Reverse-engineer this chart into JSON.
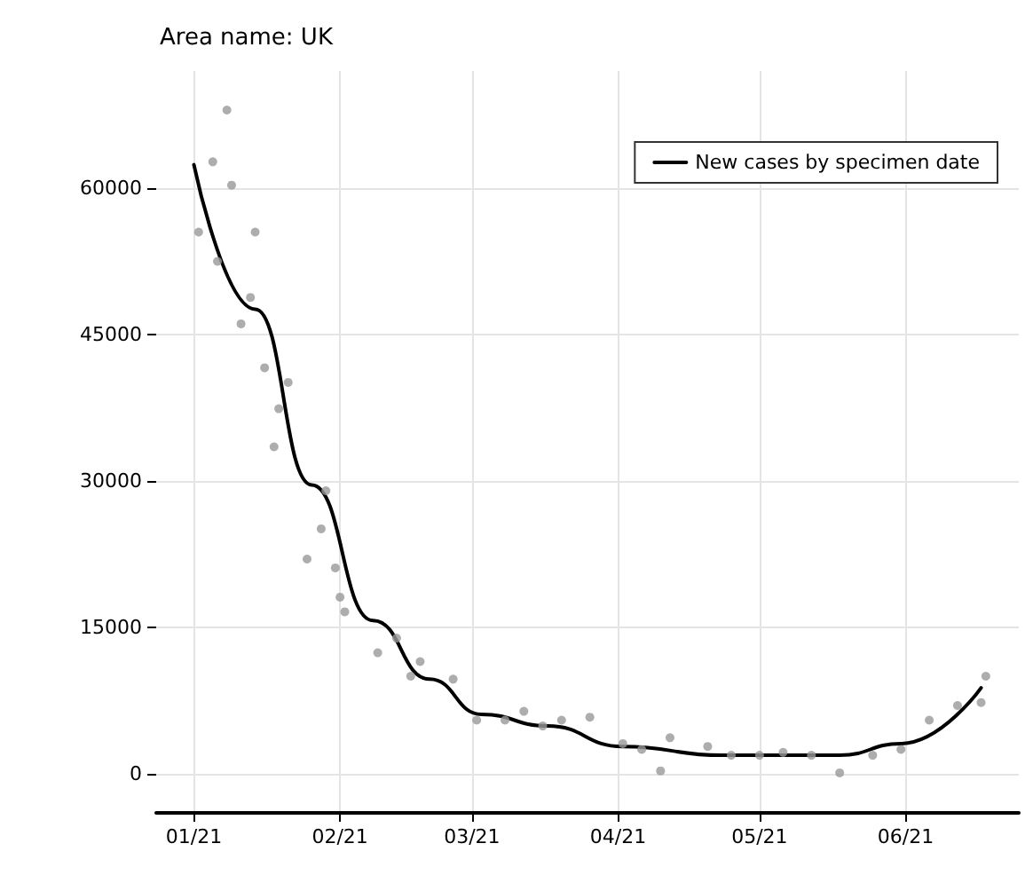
{
  "chart_data": {
    "type": "scatter",
    "title": "Area name: UK",
    "xlim": [
      "2020-12-24",
      "2021-06-25"
    ],
    "xticks": [
      {
        "value": "2021-01-01",
        "label": "01/21"
      },
      {
        "value": "2021-02-01",
        "label": "02/21"
      },
      {
        "value": "2021-03-01",
        "label": "03/21"
      },
      {
        "value": "2021-04-01",
        "label": "04/21"
      },
      {
        "value": "2021-05-01",
        "label": "05/21"
      },
      {
        "value": "2021-06-01",
        "label": "06/21"
      }
    ],
    "ylim": [
      -4000,
      72000
    ],
    "yticks": [
      0,
      15000,
      30000,
      45000,
      60000
    ],
    "grid": true,
    "legend": "top right",
    "series": [
      {
        "marker": "circle",
        "color": "#999999",
        "x": [
          "2021-01-02",
          "2021-01-05",
          "2021-01-06",
          "2021-01-08",
          "2021-01-09",
          "2021-01-11",
          "2021-01-13",
          "2021-01-14",
          "2021-01-16",
          "2021-01-18",
          "2021-01-19",
          "2021-01-21",
          "2021-01-25",
          "2021-01-28",
          "2021-01-29",
          "2021-01-31",
          "2021-02-01",
          "2021-02-02",
          "2021-02-09",
          "2021-02-13",
          "2021-02-16",
          "2021-02-18",
          "2021-02-25",
          "2021-03-02",
          "2021-03-08",
          "2021-03-12",
          "2021-03-16",
          "2021-03-20",
          "2021-03-26",
          "2021-04-02",
          "2021-04-06",
          "2021-04-10",
          "2021-04-12",
          "2021-04-20",
          "2021-04-25",
          "2021-05-01",
          "2021-05-06",
          "2021-05-12",
          "2021-05-18",
          "2021-05-25",
          "2021-05-31",
          "2021-06-06",
          "2021-06-12",
          "2021-06-17",
          "2021-06-18"
        ],
        "values": [
          55500,
          62700,
          52500,
          68000,
          60300,
          46100,
          48800,
          55500,
          41600,
          33500,
          37400,
          40100,
          22000,
          25100,
          29000,
          21100,
          18100,
          16600,
          12400,
          13900,
          10000,
          11500,
          9700,
          5500,
          5500,
          6400,
          4900,
          5500,
          5800,
          3100,
          2500,
          300,
          3700,
          2800,
          1900,
          1900,
          2200,
          1900,
          100,
          1900,
          2500,
          5500,
          7000,
          7300,
          10000
        ]
      },
      {
        "type": "line",
        "name": "New cases by specimen date",
        "marker": "none",
        "line_style": "solid",
        "color": "#000000",
        "x": [
          "2021-01-01",
          "2021-01-14",
          "2021-01-26",
          "2021-02-08",
          "2021-02-20",
          "2021-03-03",
          "2021-03-17",
          "2021-04-02",
          "2021-04-23",
          "2021-05-18",
          "2021-05-31",
          "2021-06-17"
        ],
        "values": [
          62400,
          47600,
          29600,
          15700,
          9700,
          6100,
          4900,
          2800,
          1900,
          1900,
          3100,
          8800
        ]
      }
    ]
  }
}
